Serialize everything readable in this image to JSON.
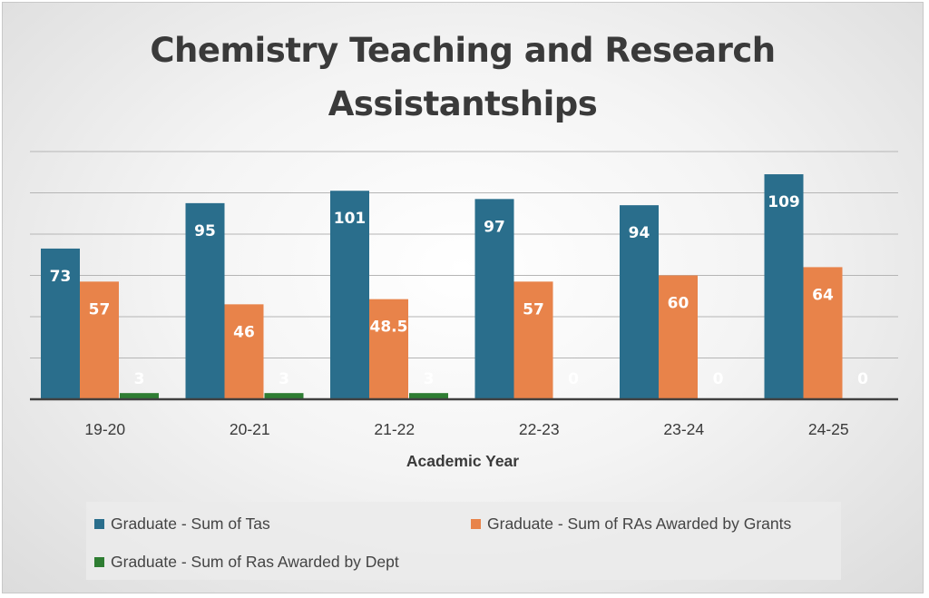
{
  "colors": {
    "tas": "#2a6e8c",
    "ras_grants": "#e8834a",
    "ras_dept": "#2e7d32",
    "gridline": "#b5b5b5",
    "axis": "#404040"
  },
  "chart_data": {
    "type": "bar",
    "title": "Chemistry Teaching and Research Assistantships",
    "xlabel": "Academic Year",
    "ylabel": "",
    "ylim": [
      0,
      120
    ],
    "grid": true,
    "legend_position": "bottom",
    "categories": [
      "19-20",
      "20-21",
      "21-22",
      "22-23",
      "23-24",
      "24-25"
    ],
    "series": [
      {
        "name": "Graduate - Sum of Tas",
        "values": [
          73,
          95,
          101,
          97,
          94,
          109
        ],
        "color_key": "tas"
      },
      {
        "name": "Graduate - Sum of RAs Awarded by Grants",
        "values": [
          57,
          46,
          48.5,
          57,
          60,
          64
        ],
        "color_key": "ras_grants"
      },
      {
        "name": "Graduate - Sum of Ras Awarded by Dept",
        "values": [
          3,
          3,
          3,
          0,
          0,
          0
        ],
        "color_key": "ras_dept"
      }
    ]
  }
}
